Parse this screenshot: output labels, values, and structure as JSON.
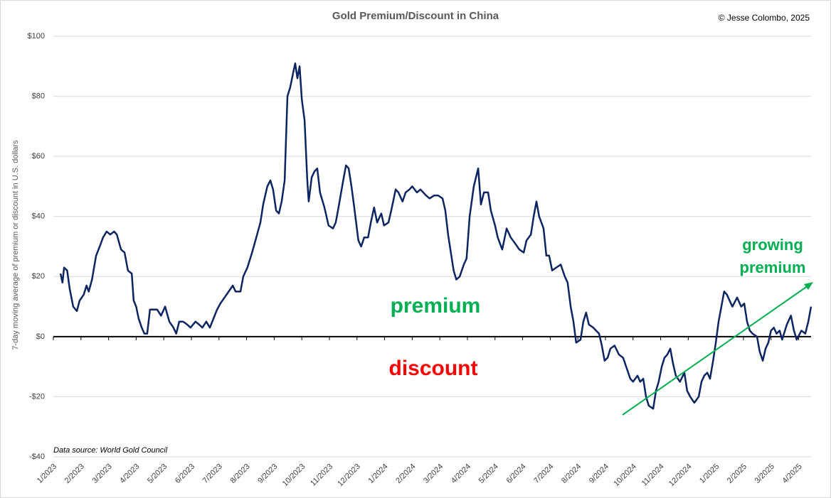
{
  "chart_data": {
    "type": "line",
    "title": "Gold Premium/Discount in China",
    "credit": "© Jesse Colombo, 2025",
    "source": "Data source: World Gold Council",
    "ylabel": "7-day moving average of premium or discount in U.S. dollars",
    "annotations": [
      "premium",
      "discount",
      "growing premium"
    ],
    "annotation_colors": [
      "#00b050",
      "#ff0000",
      "#00b050"
    ],
    "series": [
      {
        "name": "Gold Premium/Discount",
        "color": "#0c2461",
        "x": [
          0.26,
          0.33,
          0.39,
          0.5,
          0.59,
          0.72,
          0.85,
          0.95,
          1.1,
          1.2,
          1.28,
          1.4,
          1.55,
          1.68,
          1.8,
          1.93,
          2.06,
          2.2,
          2.3,
          2.45,
          2.58,
          2.7,
          2.84,
          2.91,
          3.0,
          3.09,
          3.2,
          3.3,
          3.4,
          3.5,
          3.66,
          3.76,
          3.9,
          4.05,
          4.2,
          4.35,
          4.45,
          4.56,
          4.7,
          4.85,
          4.97,
          5.15,
          5.28,
          5.4,
          5.54,
          5.67,
          5.8,
          5.93,
          6.05,
          6.2,
          6.35,
          6.5,
          6.6,
          6.78,
          6.88,
          7.03,
          7.2,
          7.35,
          7.5,
          7.6,
          7.75,
          7.86,
          7.96,
          8.07,
          8.17,
          8.27,
          8.38,
          8.48,
          8.58,
          8.69,
          8.76,
          8.84,
          8.92,
          9.0,
          9.1,
          9.2,
          9.25,
          9.36,
          9.46,
          9.56,
          9.66,
          9.82,
          9.97,
          10.13,
          10.23,
          10.33,
          10.5,
          10.6,
          10.7,
          10.8,
          10.9,
          11.05,
          11.15,
          11.26,
          11.4,
          11.5,
          11.62,
          11.73,
          11.88,
          11.98,
          12.14,
          12.24,
          12.4,
          12.5,
          12.65,
          12.76,
          12.9,
          13.0,
          13.17,
          13.3,
          13.5,
          13.63,
          13.8,
          13.94,
          14.1,
          14.2,
          14.3,
          14.4,
          14.5,
          14.6,
          14.72,
          14.87,
          14.97,
          15.08,
          15.23,
          15.39,
          15.49,
          15.6,
          15.75,
          15.85,
          16.0,
          16.1,
          16.26,
          16.42,
          16.57,
          16.73,
          16.88,
          17.04,
          17.14,
          17.3,
          17.4,
          17.5,
          17.6,
          17.76,
          17.86,
          17.96,
          18.07,
          18.22,
          18.38,
          18.53,
          18.63,
          18.74,
          18.84,
          18.94,
          19.1,
          19.2,
          19.3,
          19.4,
          19.56,
          19.66,
          19.77,
          19.87,
          19.97,
          20.08,
          20.18,
          20.33,
          20.49,
          20.64,
          20.75,
          20.9,
          21.0,
          21.16,
          21.26,
          21.37,
          21.47,
          21.57,
          21.73,
          21.83,
          21.93,
          22.04,
          22.14,
          22.24,
          22.35,
          22.45,
          22.55,
          22.7,
          22.86,
          22.96,
          23.07,
          23.22,
          23.38,
          23.48,
          23.58,
          23.69,
          23.79,
          23.9,
          24.0,
          24.1,
          24.2,
          24.3,
          24.4,
          24.5,
          24.6,
          24.77,
          24.92,
          25.03,
          25.13,
          25.23,
          25.33,
          25.49,
          25.59,
          25.7,
          25.8,
          25.9,
          26.0,
          26.1,
          26.2,
          26.31,
          26.4,
          26.57,
          26.72,
          26.83,
          26.93,
          27.1,
          27.24,
          27.35,
          27.45
        ],
        "values": [
          21,
          18,
          23,
          22,
          16,
          10,
          8.5,
          12,
          14,
          17,
          15,
          19,
          27,
          30,
          33,
          35,
          34,
          35,
          34,
          29,
          28,
          22,
          21,
          12,
          10,
          6,
          3,
          1,
          1,
          9,
          9,
          9,
          7,
          10,
          5,
          3,
          1,
          5,
          5,
          4,
          3,
          5,
          4,
          3,
          5,
          3,
          6,
          9,
          11,
          13,
          15,
          17,
          15,
          15,
          20,
          23,
          28,
          33,
          38,
          44,
          50,
          52,
          49,
          42,
          41,
          45,
          52,
          80,
          83,
          88,
          91,
          86,
          90,
          79,
          72,
          52,
          45,
          53,
          55,
          56,
          48,
          43,
          37,
          36,
          38,
          43,
          52,
          57,
          56,
          50,
          43,
          32,
          30,
          33,
          33,
          38,
          43,
          38,
          41,
          37,
          38,
          42,
          49,
          48,
          45,
          48,
          49,
          50,
          48,
          49,
          47,
          46,
          47,
          47,
          46,
          42,
          34,
          28,
          22,
          19,
          20,
          24,
          26,
          40,
          50,
          56,
          44,
          48,
          48,
          42,
          37,
          33,
          29,
          36,
          33,
          31,
          29,
          28,
          32,
          34,
          40,
          45,
          40,
          36,
          27,
          27,
          22,
          23,
          24,
          20,
          18,
          10,
          5,
          -2,
          -1,
          5,
          8,
          4,
          3,
          2,
          1,
          -3,
          -8,
          -7,
          -4,
          -3,
          -6,
          -7,
          -10,
          -14,
          -15,
          -13,
          -15,
          -14,
          -20,
          -23,
          -24,
          -18,
          -15,
          -10,
          -7,
          -6,
          -4,
          -9,
          -13,
          -15,
          -12,
          -18,
          -20,
          -22,
          -20,
          -15,
          -13,
          -12,
          -14,
          -8,
          -2,
          5,
          10,
          15,
          14,
          12,
          10,
          13,
          10,
          11,
          5,
          2,
          1,
          0,
          -5,
          -8,
          -4,
          -2,
          2,
          3,
          1,
          2,
          -1,
          4,
          7,
          2,
          -1,
          2,
          1,
          5,
          10
        ]
      }
    ],
    "xlim": [
      0,
      27.45
    ],
    "xticks": [
      {
        "value": 0,
        "label": "1/2023"
      },
      {
        "value": 1,
        "label": "2/2023"
      },
      {
        "value": 2,
        "label": "3/2023"
      },
      {
        "value": 3,
        "label": "4/2023"
      },
      {
        "value": 4,
        "label": "5/2023"
      },
      {
        "value": 5,
        "label": "6/2023"
      },
      {
        "value": 6,
        "label": "7/2023"
      },
      {
        "value": 7,
        "label": "8/2023"
      },
      {
        "value": 8,
        "label": "9/2023"
      },
      {
        "value": 9,
        "label": "10/2023"
      },
      {
        "value": 10,
        "label": "11/2023"
      },
      {
        "value": 11,
        "label": "12/2023"
      },
      {
        "value": 12,
        "label": "1/2024"
      },
      {
        "value": 13,
        "label": "2/2024"
      },
      {
        "value": 14,
        "label": "3/2024"
      },
      {
        "value": 15,
        "label": "4/2024"
      },
      {
        "value": 16,
        "label": "5/2024"
      },
      {
        "value": 17,
        "label": "6/2024"
      },
      {
        "value": 18,
        "label": "7/2024"
      },
      {
        "value": 19,
        "label": "8/2024"
      },
      {
        "value": 20,
        "label": "9/2024"
      },
      {
        "value": 21,
        "label": "10/2024"
      },
      {
        "value": 22,
        "label": "11/2024"
      },
      {
        "value": 23,
        "label": "12/2024"
      },
      {
        "value": 24,
        "label": "1/2025"
      },
      {
        "value": 25,
        "label": "2/2025"
      },
      {
        "value": 26,
        "label": "3/2025"
      },
      {
        "value": 27,
        "label": "4/2025"
      }
    ],
    "ylim": [
      -40,
      100
    ],
    "yticks": [
      {
        "value": -40,
        "label": "-$40"
      },
      {
        "value": -20,
        "label": "-$20"
      },
      {
        "value": 0,
        "label": "$0"
      },
      {
        "value": 20,
        "label": "$20"
      },
      {
        "value": 40,
        "label": "$40"
      },
      {
        "value": 60,
        "label": "$60"
      },
      {
        "value": 80,
        "label": "$80"
      },
      {
        "value": 100,
        "label": "$100"
      }
    ],
    "grid": true
  }
}
